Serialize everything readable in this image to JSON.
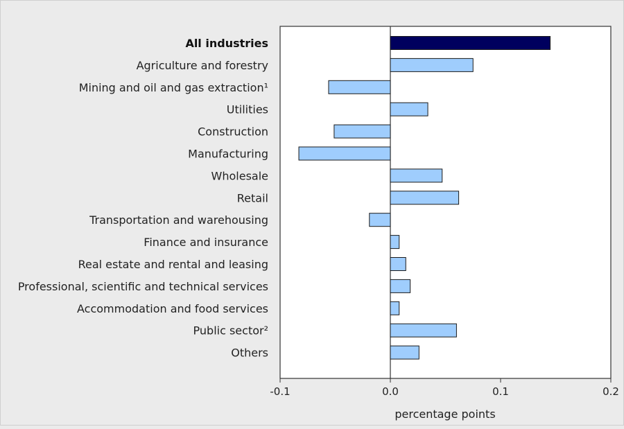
{
  "chart_data": {
    "type": "bar",
    "orientation": "horizontal",
    "title": "",
    "xlabel": "percentage points",
    "ylabel": "",
    "xlim": [
      -0.1,
      0.2
    ],
    "xticks": [
      -0.1,
      0.0,
      0.1,
      0.2
    ],
    "xtick_labels": [
      "-0.1",
      "0.0",
      "0.1",
      "0.2"
    ],
    "grid": false,
    "categories": [
      "All industries",
      "Agriculture and forestry",
      "Mining and oil and gas extraction¹",
      "Utilities",
      "Construction",
      "Manufacturing",
      "Wholesale",
      "Retail",
      "Transportation and warehousing",
      "Finance and insurance",
      "Real estate and rental and leasing",
      "Professional, scientific and technical services",
      "Accommodation and food services",
      "Public sector²",
      "Others"
    ],
    "values": [
      0.145,
      0.075,
      -0.056,
      0.034,
      -0.051,
      -0.083,
      0.047,
      0.062,
      -0.019,
      0.008,
      0.014,
      0.018,
      0.008,
      0.06,
      0.026
    ],
    "highlight_index": 0,
    "colors": {
      "highlight": "#00005e",
      "bar": "#9fcdfd",
      "bar_edge": "#1a1a1a",
      "axis": "#333333"
    }
  }
}
